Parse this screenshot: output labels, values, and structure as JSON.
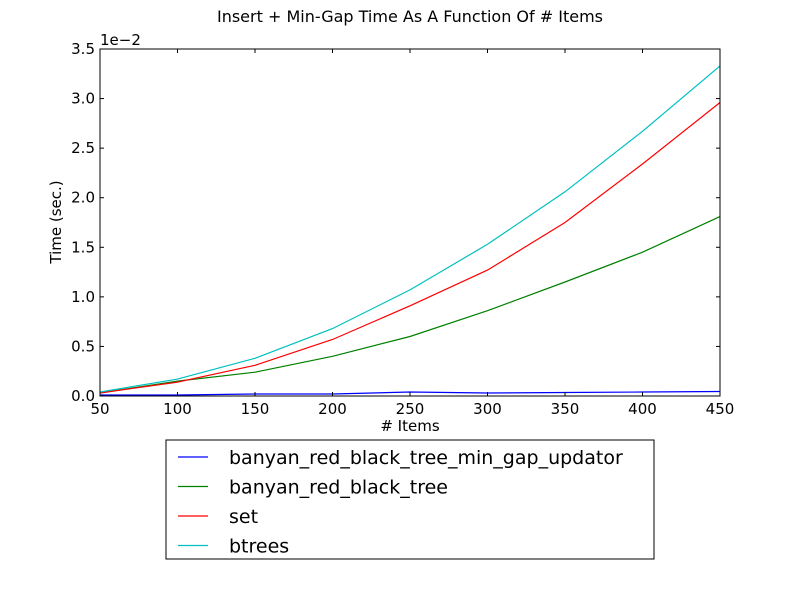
{
  "chart_data": {
    "type": "line",
    "title": "Insert + Min-Gap Time As A Function Of # Items",
    "xlabel": "# Items",
    "ylabel": "Time (sec.)",
    "y_multiplier_label": "1e−2",
    "x": [
      50,
      100,
      150,
      200,
      250,
      300,
      350,
      400,
      450
    ],
    "xlim": [
      50,
      450
    ],
    "ylim": [
      0,
      3.5
    ],
    "x_ticks": [
      "50",
      "100",
      "150",
      "200",
      "250",
      "300",
      "350",
      "400",
      "450"
    ],
    "y_ticks": [
      "0.0",
      "0.5",
      "1.0",
      "1.5",
      "2.0",
      "2.5",
      "3.0",
      "3.5"
    ],
    "grid": false,
    "legend_position": "below plot",
    "series": [
      {
        "name": "banyan_red_black_tree_min_gap_updator",
        "color": "#0000ff",
        "values": [
          0.01,
          0.01,
          0.02,
          0.02,
          0.04,
          0.03,
          0.035,
          0.04,
          0.045
        ]
      },
      {
        "name": "banyan_red_black_tree",
        "color": "#008000",
        "values": [
          0.03,
          0.15,
          0.24,
          0.4,
          0.6,
          0.86,
          1.15,
          1.45,
          1.81
        ]
      },
      {
        "name": "set",
        "color": "#ff0000",
        "values": [
          0.03,
          0.14,
          0.31,
          0.57,
          0.91,
          1.27,
          1.75,
          2.34,
          2.96
        ]
      },
      {
        "name": "btrees",
        "color": "#00bfbf",
        "values": [
          0.04,
          0.17,
          0.38,
          0.68,
          1.07,
          1.53,
          2.06,
          2.67,
          3.33
        ]
      }
    ]
  }
}
